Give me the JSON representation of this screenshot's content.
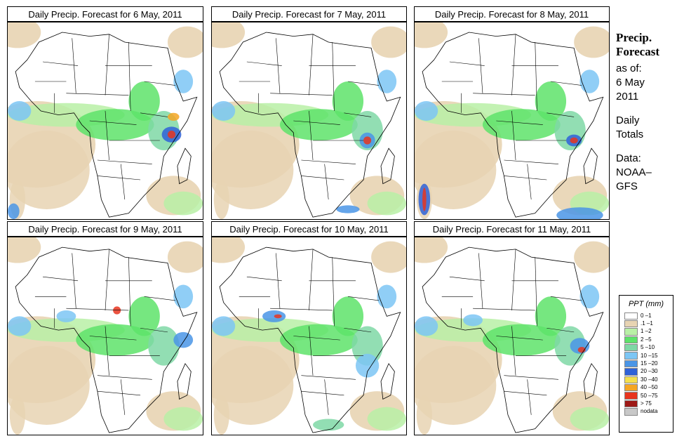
{
  "panels": [
    {
      "title": "Daily Precip. Forecast for  6 May, 2011",
      "variant": 0
    },
    {
      "title": "Daily Precip. Forecast for  7 May, 2011",
      "variant": 1
    },
    {
      "title": "Daily Precip. Forecast for  8 May, 2011",
      "variant": 2
    },
    {
      "title": "Daily Precip. Forecast for  9 May, 2011",
      "variant": 3
    },
    {
      "title": "Daily Precip. Forecast for  10 May, 2011",
      "variant": 4
    },
    {
      "title": "Daily Precip. Forecast for  11 May, 2011",
      "variant": 5
    }
  ],
  "sidebar": {
    "title_line1": "Precip.",
    "title_line2": "Forecast",
    "as_of_label": "as of:",
    "date_line1": "6 May",
    "date_line2": "2011",
    "period_line1": "Daily",
    "period_line2": "Totals",
    "data_label": "Data:",
    "source_line1": "NOAA–",
    "source_line2": "GFS"
  },
  "legend": {
    "title": "PPT (mm)",
    "items": [
      {
        "label": "0 –1",
        "color": "#ffffff"
      },
      {
        "label": ".1 –1",
        "color": "#e8d4b3"
      },
      {
        "label": "1 –2",
        "color": "#b9f0a6"
      },
      {
        "label": "2 –5",
        "color": "#5ee36a"
      },
      {
        "label": "5 –10",
        "color": "#7fd8a6"
      },
      {
        "label": "10 –15",
        "color": "#7cc6f4"
      },
      {
        "label": "15 –20",
        "color": "#4a95e6"
      },
      {
        "label": "20 –30",
        "color": "#2f62d8"
      },
      {
        "label": "30 –40",
        "color": "#f4e04d"
      },
      {
        "label": "40 –50",
        "color": "#f5a623"
      },
      {
        "label": "50 –75",
        "color": "#e8351f"
      },
      {
        "label": "> 75",
        "color": "#9e1a17"
      },
      {
        "label": "nodata",
        "color": "#c8c8c8"
      }
    ]
  }
}
